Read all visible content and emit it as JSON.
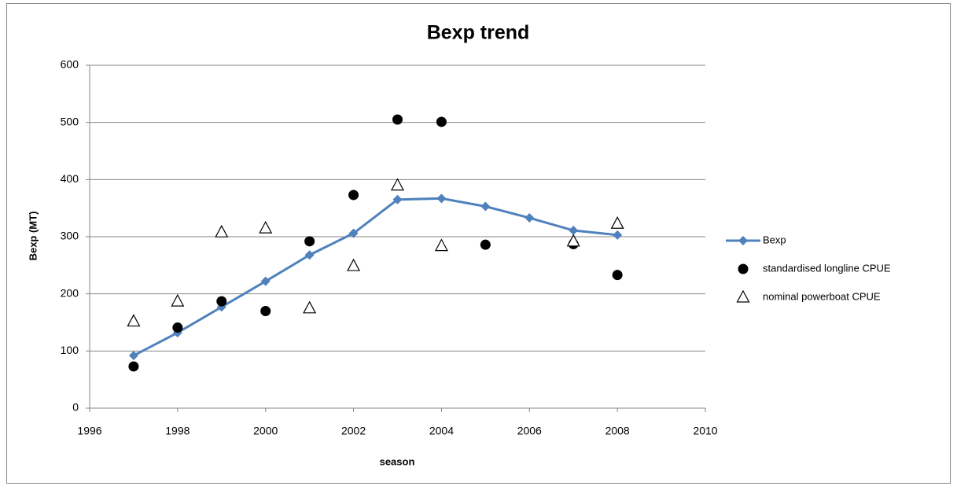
{
  "chart_data": {
    "type": "line",
    "title": "Bexp trend",
    "x_label": "season",
    "y_label": "Bexp (MT)",
    "x": [
      1997,
      1998,
      1999,
      2000,
      2001,
      2002,
      2003,
      2004,
      2005,
      2006,
      2007,
      2008
    ],
    "series": [
      {
        "name": "Bexp",
        "color": "#4f81bd",
        "line": true,
        "marker": "diamond",
        "values": [
          92,
          132,
          177,
          222,
          268,
          306,
          365,
          367,
          353,
          333,
          311,
          303
        ]
      },
      {
        "name": "standardised longline CPUE",
        "color": "#000000",
        "line": false,
        "marker": "circle",
        "values": [
          73,
          141,
          187,
          170,
          292,
          373,
          505,
          501,
          286,
          null,
          287,
          233
        ]
      },
      {
        "name": "nominal powerboat CPUE",
        "color": "#000000",
        "line": false,
        "marker": "triangle",
        "values": [
          152,
          187,
          308,
          315,
          175,
          249,
          390,
          284,
          null,
          null,
          292,
          323
        ]
      }
    ],
    "xlim": [
      1996,
      2010
    ],
    "xticks": [
      1996,
      1998,
      2000,
      2002,
      2004,
      2006,
      2008,
      2010
    ],
    "ylim": [
      0,
      600
    ],
    "yticks": [
      0,
      100,
      200,
      300,
      400,
      500,
      600
    ],
    "grid": true,
    "legend": "right"
  }
}
